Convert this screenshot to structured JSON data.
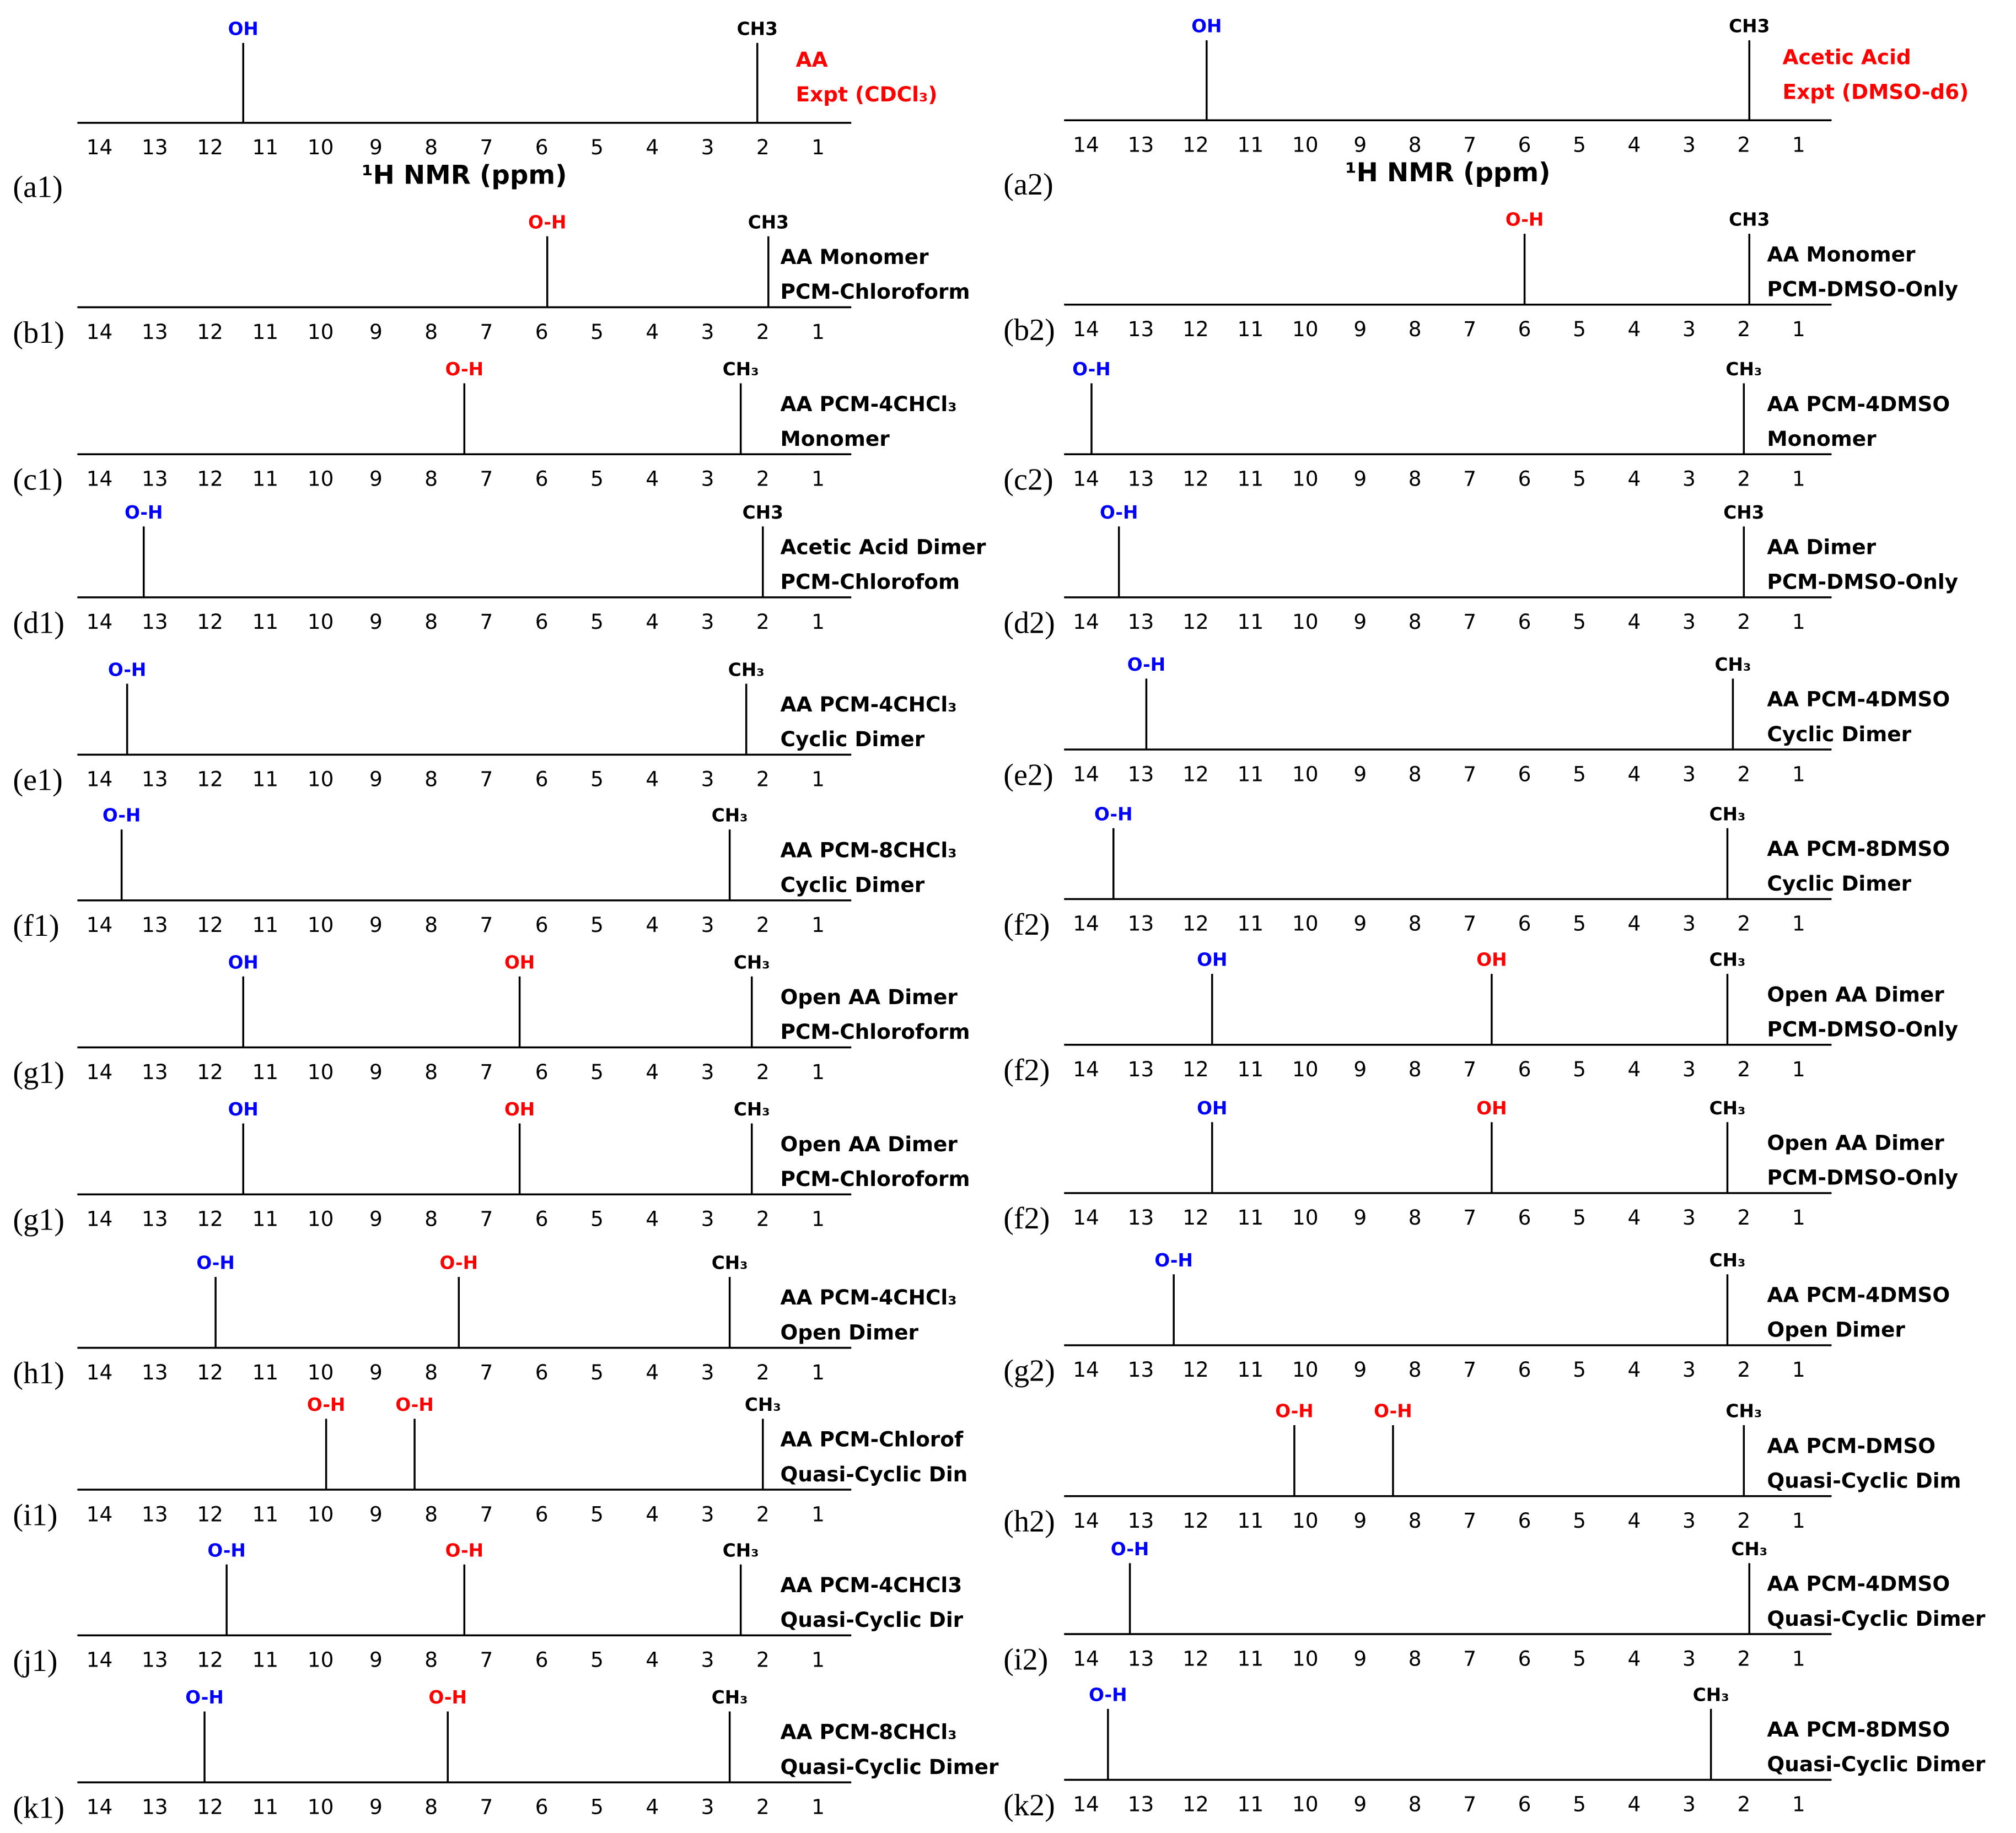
{
  "chart_data": [
    {
      "type": "stem",
      "panel": "(a1)",
      "annotations": [
        "AA",
        "Expt (CDCl₃)"
      ],
      "annotation_color": "#ff0000",
      "xlabel": "¹H NMR (ppm)",
      "x": [
        11.4,
        2.1
      ],
      "peak_labels": [
        "OH",
        "CH3"
      ],
      "peak_colors": [
        "#0000ff",
        "#000000"
      ],
      "xlim": [
        14.4,
        0.4
      ],
      "xticks": [
        14,
        13,
        12,
        11,
        10,
        9,
        8,
        7,
        6,
        5,
        4,
        3,
        2,
        1
      ]
    },
    {
      "type": "stem",
      "panel": "(a2)",
      "annotations": [
        "Acetic Acid",
        "Expt (DMSO-d6)"
      ],
      "annotation_color": "#ff0000",
      "xlabel": "¹H NMR (ppm)",
      "x": [
        11.8,
        1.9
      ],
      "peak_labels": [
        "OH",
        "CH3"
      ],
      "peak_colors": [
        "#0000ff",
        "#000000"
      ],
      "xlim": [
        14.4,
        0.4
      ],
      "xticks": [
        14,
        13,
        12,
        11,
        10,
        9,
        8,
        7,
        6,
        5,
        4,
        3,
        2,
        1
      ]
    },
    {
      "type": "stem",
      "panel": "(b1)",
      "annotations": [
        "AA Monomer",
        "PCM-Chloroform"
      ],
      "annotation_color": "#000000",
      "x": [
        5.9,
        1.9
      ],
      "peak_labels": [
        "O-H",
        "CH3"
      ],
      "peak_colors": [
        "#ff0000",
        "#000000"
      ],
      "xlim": [
        14.4,
        0.4
      ],
      "xticks": [
        14,
        13,
        12,
        11,
        10,
        9,
        8,
        7,
        6,
        5,
        4,
        3,
        2,
        1
      ]
    },
    {
      "type": "stem",
      "panel": "(b2)",
      "annotations": [
        "AA Monomer",
        "PCM-DMSO-Only"
      ],
      "annotation_color": "#000000",
      "x": [
        6.0,
        1.9
      ],
      "peak_labels": [
        "O-H",
        "CH3"
      ],
      "peak_colors": [
        "#ff0000",
        "#000000"
      ],
      "xlim": [
        14.4,
        0.4
      ],
      "xticks": [
        14,
        13,
        12,
        11,
        10,
        9,
        8,
        7,
        6,
        5,
        4,
        3,
        2,
        1
      ]
    },
    {
      "type": "stem",
      "panel": "(c1)",
      "annotations": [
        "AA PCM-4CHCl₃",
        "Monomer"
      ],
      "annotation_color": "#000000",
      "x": [
        7.4,
        2.4
      ],
      "peak_labels": [
        "O-H",
        "CH₃"
      ],
      "peak_colors": [
        "#ff0000",
        "#000000"
      ],
      "xlim": [
        14.4,
        0.4
      ],
      "xticks": [
        14,
        13,
        12,
        11,
        10,
        9,
        8,
        7,
        6,
        5,
        4,
        3,
        2,
        1
      ]
    },
    {
      "type": "stem",
      "panel": "(c2)",
      "annotations": [
        "AA PCM-4DMSO",
        "Monomer"
      ],
      "annotation_color": "#000000",
      "x": [
        13.9,
        2.0
      ],
      "peak_labels": [
        "O-H",
        "CH₃"
      ],
      "peak_colors": [
        "#0000ff",
        "#000000"
      ],
      "xlim": [
        14.4,
        0.4
      ],
      "xticks": [
        14,
        13,
        12,
        11,
        10,
        9,
        8,
        7,
        6,
        5,
        4,
        3,
        2,
        1
      ]
    },
    {
      "type": "stem",
      "panel": "(d1)",
      "annotations": [
        "Acetic Acid Dimer",
        "PCM-Chlorofom"
      ],
      "annotation_color": "#000000",
      "x": [
        13.2,
        2.0
      ],
      "peak_labels": [
        "O-H",
        "CH3"
      ],
      "peak_colors": [
        "#0000ff",
        "#000000"
      ],
      "xlim": [
        14.4,
        0.4
      ],
      "xticks": [
        14,
        13,
        12,
        11,
        10,
        9,
        8,
        7,
        6,
        5,
        4,
        3,
        2,
        1
      ]
    },
    {
      "type": "stem",
      "panel": "(d2)",
      "annotations": [
        "AA Dimer",
        "PCM-DMSO-Only"
      ],
      "annotation_color": "#000000",
      "x": [
        13.4,
        2.0
      ],
      "peak_labels": [
        "O-H",
        "CH3"
      ],
      "peak_colors": [
        "#0000ff",
        "#000000"
      ],
      "xlim": [
        14.4,
        0.4
      ],
      "xticks": [
        14,
        13,
        12,
        11,
        10,
        9,
        8,
        7,
        6,
        5,
        4,
        3,
        2,
        1
      ]
    },
    {
      "type": "stem",
      "panel": "(e1)",
      "annotations": [
        "AA PCM-4CHCl₃",
        "Cyclic Dimer"
      ],
      "annotation_color": "#000000",
      "x": [
        13.5,
        2.3
      ],
      "peak_labels": [
        "O-H",
        "CH₃"
      ],
      "peak_colors": [
        "#0000ff",
        "#000000"
      ],
      "xlim": [
        14.4,
        0.4
      ],
      "xticks": [
        14,
        13,
        12,
        11,
        10,
        9,
        8,
        7,
        6,
        5,
        4,
        3,
        2,
        1
      ]
    },
    {
      "type": "stem",
      "panel": "(e2)",
      "annotations": [
        "AA PCM-4DMSO",
        "Cyclic Dimer"
      ],
      "annotation_color": "#000000",
      "x": [
        12.9,
        2.2
      ],
      "peak_labels": [
        "O-H",
        "CH₃"
      ],
      "peak_colors": [
        "#0000ff",
        "#000000"
      ],
      "xlim": [
        14.4,
        0.4
      ],
      "xticks": [
        14,
        13,
        12,
        11,
        10,
        9,
        8,
        7,
        6,
        5,
        4,
        3,
        2,
        1
      ]
    },
    {
      "type": "stem",
      "panel": "(f1)",
      "annotations": [
        "AA PCM-8CHCl₃",
        "Cyclic Dimer"
      ],
      "annotation_color": "#000000",
      "x": [
        13.6,
        2.6
      ],
      "peak_labels": [
        "O-H",
        "CH₃"
      ],
      "peak_colors": [
        "#0000ff",
        "#000000"
      ],
      "xlim": [
        14.4,
        0.4
      ],
      "xticks": [
        14,
        13,
        12,
        11,
        10,
        9,
        8,
        7,
        6,
        5,
        4,
        3,
        2,
        1
      ]
    },
    {
      "type": "stem",
      "panel": "(f2)",
      "annotations": [
        "AA PCM-8DMSO",
        "Cyclic Dimer"
      ],
      "annotation_color": "#000000",
      "x": [
        13.5,
        2.3
      ],
      "peak_labels": [
        "O-H",
        "CH₃"
      ],
      "peak_colors": [
        "#0000ff",
        "#000000"
      ],
      "xlim": [
        14.4,
        0.4
      ],
      "xticks": [
        14,
        13,
        12,
        11,
        10,
        9,
        8,
        7,
        6,
        5,
        4,
        3,
        2,
        1
      ]
    },
    {
      "type": "stem",
      "panel": "(g1)",
      "annotations": [
        "Open AA Dimer",
        "PCM-Chloroform"
      ],
      "annotation_color": "#000000",
      "x": [
        11.4,
        6.4,
        2.2
      ],
      "peak_labels": [
        "OH",
        "OH",
        "CH₃"
      ],
      "peak_colors": [
        "#0000ff",
        "#ff0000",
        "#000000"
      ],
      "xlim": [
        14.4,
        0.4
      ],
      "xticks": [
        14,
        13,
        12,
        11,
        10,
        9,
        8,
        7,
        6,
        5,
        4,
        3,
        2,
        1
      ]
    },
    {
      "type": "stem",
      "panel": "(f2)",
      "annotations": [
        "Open AA Dimer",
        "PCM-DMSO-Only"
      ],
      "annotation_color": "#000000",
      "x": [
        11.7,
        6.6,
        2.3
      ],
      "peak_labels": [
        "OH",
        "OH",
        "CH₃"
      ],
      "peak_colors": [
        "#0000ff",
        "#ff0000",
        "#000000"
      ],
      "xlim": [
        14.4,
        0.4
      ],
      "xticks": [
        14,
        13,
        12,
        11,
        10,
        9,
        8,
        7,
        6,
        5,
        4,
        3,
        2,
        1
      ]
    },
    {
      "type": "stem",
      "panel": "(g1)",
      "annotations": [
        "Open AA Dimer",
        "PCM-Chloroform"
      ],
      "annotation_color": "#000000",
      "x": [
        11.4,
        6.4,
        2.2
      ],
      "peak_labels": [
        "OH",
        "OH",
        "CH₃"
      ],
      "peak_colors": [
        "#0000ff",
        "#ff0000",
        "#000000"
      ],
      "xlim": [
        14.4,
        0.4
      ],
      "xticks": [
        14,
        13,
        12,
        11,
        10,
        9,
        8,
        7,
        6,
        5,
        4,
        3,
        2,
        1
      ]
    },
    {
      "type": "stem",
      "panel": "(f2)",
      "annotations": [
        "Open AA Dimer",
        "PCM-DMSO-Only"
      ],
      "annotation_color": "#000000",
      "x": [
        11.7,
        6.6,
        2.3
      ],
      "peak_labels": [
        "OH",
        "OH",
        "CH₃"
      ],
      "peak_colors": [
        "#0000ff",
        "#ff0000",
        "#000000"
      ],
      "xlim": [
        14.4,
        0.4
      ],
      "xticks": [
        14,
        13,
        12,
        11,
        10,
        9,
        8,
        7,
        6,
        5,
        4,
        3,
        2,
        1
      ]
    },
    {
      "type": "stem",
      "panel": "(h1)",
      "annotations": [
        "AA PCM-4CHCl₃",
        "Open Dimer"
      ],
      "annotation_color": "#000000",
      "x": [
        11.9,
        7.5,
        2.6
      ],
      "peak_labels": [
        "O-H",
        "O-H",
        "CH₃"
      ],
      "peak_colors": [
        "#0000ff",
        "#ff0000",
        "#000000"
      ],
      "xlim": [
        14.4,
        0.4
      ],
      "xticks": [
        14,
        13,
        12,
        11,
        10,
        9,
        8,
        7,
        6,
        5,
        4,
        3,
        2,
        1
      ]
    },
    {
      "type": "stem",
      "panel": "(g2)",
      "annotations": [
        "AA PCM-4DMSO",
        "Open Dimer"
      ],
      "annotation_color": "#000000",
      "x": [
        12.4,
        2.3
      ],
      "peak_labels": [
        "O-H",
        "CH₃"
      ],
      "peak_colors": [
        "#0000ff",
        "#000000"
      ],
      "xlim": [
        14.4,
        0.4
      ],
      "xticks": [
        14,
        13,
        12,
        11,
        10,
        9,
        8,
        7,
        6,
        5,
        4,
        3,
        2,
        1
      ]
    },
    {
      "type": "stem",
      "panel": "(i1)",
      "annotations": [
        "AA PCM-Chlorof",
        "Quasi-Cyclic Din"
      ],
      "annotation_color": "#000000",
      "x": [
        9.9,
        8.3,
        2.0
      ],
      "peak_labels": [
        "O-H",
        "O-H",
        "CH₃"
      ],
      "peak_colors": [
        "#ff0000",
        "#ff0000",
        "#000000"
      ],
      "xlim": [
        14.4,
        0.4
      ],
      "xticks": [
        14,
        13,
        12,
        11,
        10,
        9,
        8,
        7,
        6,
        5,
        4,
        3,
        2,
        1
      ]
    },
    {
      "type": "stem",
      "panel": "(h2)",
      "annotations": [
        "AA PCM-DMSO",
        "Quasi-Cyclic Dim"
      ],
      "annotation_color": "#000000",
      "x": [
        10.2,
        8.4,
        2.0
      ],
      "peak_labels": [
        "O-H",
        "O-H",
        "CH₃"
      ],
      "peak_colors": [
        "#ff0000",
        "#ff0000",
        "#000000"
      ],
      "xlim": [
        14.4,
        0.4
      ],
      "xticks": [
        14,
        13,
        12,
        11,
        10,
        9,
        8,
        7,
        6,
        5,
        4,
        3,
        2,
        1
      ]
    },
    {
      "type": "stem",
      "panel": "(j1)",
      "annotations": [
        "AA PCM-4CHCl3",
        "Quasi-Cyclic Dir"
      ],
      "annotation_color": "#000000",
      "x": [
        11.7,
        7.4,
        2.4
      ],
      "peak_labels": [
        "O-H",
        "O-H",
        "CH₃"
      ],
      "peak_colors": [
        "#0000ff",
        "#ff0000",
        "#000000"
      ],
      "xlim": [
        14.4,
        0.4
      ],
      "xticks": [
        14,
        13,
        12,
        11,
        10,
        9,
        8,
        7,
        6,
        5,
        4,
        3,
        2,
        1
      ]
    },
    {
      "type": "stem",
      "panel": "(i2)",
      "annotations": [
        "AA PCM-4DMSO",
        "Quasi-Cyclic Dimer"
      ],
      "annotation_color": "#000000",
      "x": [
        13.2,
        1.9
      ],
      "peak_labels": [
        "O-H",
        "CH₃"
      ],
      "peak_colors": [
        "#0000ff",
        "#000000"
      ],
      "xlim": [
        14.4,
        0.4
      ],
      "xticks": [
        14,
        13,
        12,
        11,
        10,
        9,
        8,
        7,
        6,
        5,
        4,
        3,
        2,
        1
      ]
    },
    {
      "type": "stem",
      "panel": "(k1)",
      "annotations": [
        "AA PCM-8CHCl₃",
        "Quasi-Cyclic Dimer"
      ],
      "annotation_color": "#000000",
      "x": [
        12.1,
        7.7,
        2.6
      ],
      "peak_labels": [
        "O-H",
        "O-H",
        "CH₃"
      ],
      "peak_colors": [
        "#0000ff",
        "#ff0000",
        "#000000"
      ],
      "xlim": [
        14.4,
        0.4
      ],
      "xticks": [
        14,
        13,
        12,
        11,
        10,
        9,
        8,
        7,
        6,
        5,
        4,
        3,
        2,
        1
      ]
    },
    {
      "type": "stem",
      "panel": "(k2)",
      "annotations": [
        "AA PCM-8DMSO",
        "Quasi-Cyclic Dimer"
      ],
      "annotation_color": "#000000",
      "x": [
        13.6,
        2.6
      ],
      "peak_labels": [
        "O-H",
        "CH₃"
      ],
      "peak_colors": [
        "#0000ff",
        "#000000"
      ],
      "xlim": [
        14.4,
        0.4
      ],
      "xticks": [
        14,
        13,
        12,
        11,
        10,
        9,
        8,
        7,
        6,
        5,
        4,
        3,
        2,
        1
      ]
    }
  ]
}
